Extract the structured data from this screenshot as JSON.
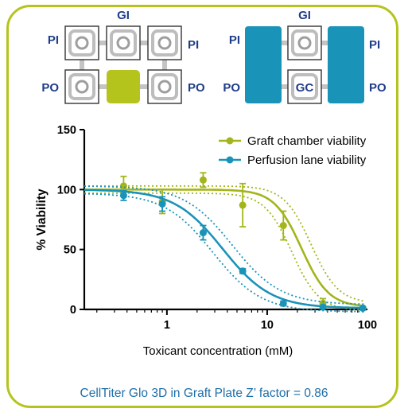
{
  "schematic_left": {
    "top_label": "GI",
    "left_top_label": "PI",
    "right_top_label": "PI",
    "left_bottom_label": "PO",
    "right_bottom_label": "PO",
    "highlight_color": "#b5c41c"
  },
  "schematic_right": {
    "top_label": "GI",
    "left_top_label": "PI",
    "right_top_label": "PI",
    "left_bottom_label": "PO",
    "right_bottom_label": "PO",
    "center_label": "GC",
    "highlight_color": "#1a93b8"
  },
  "chart_data": {
    "type": "scatter",
    "xlabel": "Toxicant concentration (mM)",
    "ylabel": "% Viability",
    "x_scale": "log",
    "xlim": [
      0.15,
      100
    ],
    "ylim": [
      0,
      150
    ],
    "x_ticks": [
      "1",
      "10",
      "100"
    ],
    "x_tick_values": [
      1,
      10,
      100
    ],
    "y_ticks": [
      "0",
      "50",
      "100",
      "150"
    ],
    "y_tick_values": [
      0,
      50,
      100,
      150
    ],
    "legend_position": "top-right",
    "grid": false,
    "series": [
      {
        "name": "Graft chamber viability",
        "color": "#a3b51a",
        "points": [
          {
            "x": 0.37,
            "y": 103,
            "err": 8
          },
          {
            "x": 0.9,
            "y": 90,
            "err": 10
          },
          {
            "x": 2.3,
            "y": 108,
            "err": 6
          },
          {
            "x": 5.7,
            "y": 87,
            "err": 18
          },
          {
            "x": 14.5,
            "y": 70,
            "err": 12
          },
          {
            "x": 36,
            "y": 5,
            "err": 4
          },
          {
            "x": 90,
            "y": 1,
            "err": 1
          }
        ],
        "fit": {
          "top": 100,
          "bottom": 2,
          "ic50": 22,
          "hill": 3.2
        }
      },
      {
        "name": "Perfusion lane viability",
        "color": "#1a93b8",
        "points": [
          {
            "x": 0.37,
            "y": 95,
            "err": 4
          },
          {
            "x": 0.9,
            "y": 88,
            "err": 6
          },
          {
            "x": 2.3,
            "y": 64,
            "err": 6
          },
          {
            "x": 5.7,
            "y": 32,
            "err": 2
          },
          {
            "x": 14.5,
            "y": 5,
            "err": 2
          },
          {
            "x": 36,
            "y": 2,
            "err": 1
          },
          {
            "x": 90,
            "y": 1,
            "err": 1
          }
        ],
        "fit": {
          "top": 100,
          "bottom": 1,
          "ic50": 3.6,
          "hill": 1.8
        }
      }
    ]
  },
  "caption": "CellTiter Glo 3D in Graft Plate Z’ factor = 0.86"
}
